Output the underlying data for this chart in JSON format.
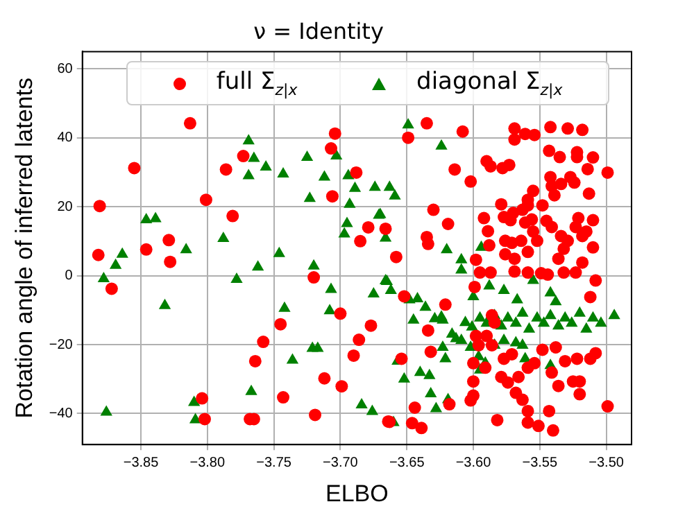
{
  "chart_data": {
    "type": "scatter",
    "title": "ν = Identity",
    "xlabel": "ELBO",
    "ylabel": "Rotation angle of inferred latents",
    "xlim": [
      -3.894,
      -3.481
    ],
    "ylim": [
      -49,
      65
    ],
    "xticks": [
      {
        "value": -3.85,
        "label": "−3.85"
      },
      {
        "value": -3.8,
        "label": "−3.80"
      },
      {
        "value": -3.75,
        "label": "−3.75"
      },
      {
        "value": -3.7,
        "label": "−3.70"
      },
      {
        "value": -3.65,
        "label": "−3.65"
      },
      {
        "value": -3.6,
        "label": "−3.60"
      },
      {
        "value": -3.55,
        "label": "−3.55"
      },
      {
        "value": -3.5,
        "label": "−3.50"
      }
    ],
    "yticks": [
      {
        "value": -40,
        "label": "−40"
      },
      {
        "value": -20,
        "label": "−20"
      },
      0,
      20,
      40,
      60
    ],
    "grid": true,
    "legend": "top",
    "series": [
      {
        "name": "full Σ$_{z|x}$",
        "color": "#ff0000",
        "marker": "circle",
        "x": [
          -3.813,
          -3.855,
          -3.881,
          -3.882,
          -3.872,
          -3.846,
          -3.829,
          -3.828,
          -3.801,
          -3.786,
          -3.773,
          -3.781,
          -3.704,
          -3.707,
          -3.706,
          -3.688,
          -3.679,
          -3.685,
          -3.666,
          -3.72,
          -3.7,
          -3.745,
          -3.677,
          -3.686,
          -3.758,
          -3.69,
          -3.764,
          -3.712,
          -3.699,
          -3.804,
          -3.743,
          -3.802,
          -3.768,
          -3.765,
          -3.719,
          -3.664,
          -3.635,
          -3.649,
          -3.608,
          -3.614,
          -3.602,
          -3.59,
          -3.587,
          -3.578,
          -3.573,
          -3.569,
          -3.569,
          -3.561,
          -3.554,
          -3.542,
          -3.543,
          -3.529,
          -3.518,
          -3.535,
          -3.522,
          -3.522,
          -3.51,
          -3.514,
          -3.499,
          -3.63,
          -3.619,
          -3.658,
          -3.635,
          -3.634,
          -3.652,
          -3.621,
          -3.634,
          -3.632,
          -3.654,
          -3.644,
          -3.646,
          -3.639,
          -3.663,
          -3.618,
          -3.602,
          -3.6,
          -3.579,
          -3.577,
          -3.572,
          -3.57,
          -3.563,
          -3.559,
          -3.561,
          -3.556,
          -3.555,
          -3.548,
          -3.545,
          -3.541,
          -3.534,
          -3.529,
          -3.532,
          -3.523,
          -3.518,
          -3.521,
          -3.51,
          -3.515,
          -3.51,
          -3.576,
          -3.571,
          -3.564,
          -3.552,
          -3.559,
          -3.576,
          -3.569,
          -3.598,
          -3.595,
          -3.589,
          -3.588,
          -3.592,
          -3.587,
          -3.569,
          -3.559,
          -3.549,
          -3.544,
          -3.536,
          -3.532,
          -3.523,
          -3.508,
          -3.518,
          -3.512,
          -3.599,
          -3.59,
          -3.586,
          -3.577,
          -3.571,
          -3.579,
          -3.574,
          -3.566,
          -3.559,
          -3.568,
          -3.563,
          -3.554,
          -3.548,
          -3.538,
          -3.531,
          -3.522,
          -3.52,
          -3.512,
          -3.508,
          -3.536,
          -3.525,
          -3.541,
          -3.559,
          -3.551,
          -3.54,
          -3.543,
          -3.559,
          -3.582,
          -3.499,
          -3.52,
          -3.586,
          -3.584,
          -3.596,
          -3.6,
          -3.6,
          -3.591,
          -3.598,
          -3.527,
          -3.524,
          -3.513,
          -3.541,
          -3.539,
          -3.534,
          -3.555,
          -3.559,
          -3.542
        ],
        "values": [
          44.2,
          31.2,
          20.2,
          6,
          -3.8,
          7.6,
          10.3,
          4,
          22,
          30.8,
          34.7,
          17.3,
          41.2,
          36.9,
          23,
          29.9,
          14,
          10,
          13.6,
          -0.5,
          -11,
          -14.1,
          -14.5,
          -18.6,
          -19.2,
          -23.2,
          -24.8,
          -29.8,
          -32.1,
          -35.6,
          -35.3,
          -41.6,
          -41.6,
          -41.6,
          -40.4,
          -42.3,
          44.2,
          40,
          41.8,
          30.8,
          27.3,
          33.2,
          31.7,
          31.2,
          32.1,
          42.7,
          39.5,
          41.1,
          40.8,
          43.1,
          36.2,
          42.7,
          42.3,
          34.4,
          35.8,
          34.4,
          34.3,
          30.9,
          29.9,
          19.1,
          15,
          5.4,
          11.2,
          9.2,
          -6,
          -8.4,
          -15.9,
          -22.1,
          -24.1,
          -38.3,
          -42.8,
          -44.2,
          -42.4,
          -37.3,
          -36.2,
          -34.8,
          20.7,
          17,
          16.1,
          18.2,
          19.1,
          20.4,
          15.4,
          16.3,
          12.8,
          20.4,
          15.9,
          14.1,
          11.5,
          10.1,
          7.8,
          14.1,
          11.5,
          16.7,
          16.1,
          12.8,
          8.2,
          10.1,
          9.5,
          10.1,
          10.1,
          6.9,
          6.2,
          4.9,
          4.6,
          0.9,
          12.9,
          8.8,
          16.7,
          0.9,
          1.2,
          0.9,
          0.7,
          0.3,
          4.9,
          0.9,
          0.9,
          -1.4,
          3.8,
          -6.2,
          -3.3,
          -17.5,
          -20.2,
          -24.1,
          -22.8,
          -29.4,
          -31,
          -29.4,
          -26.7,
          -34,
          -36,
          -25.4,
          -21.5,
          -20.8,
          -24.8,
          -24.1,
          -30.7,
          -24.1,
          -22.5,
          -32,
          -30.7,
          -28.1,
          -42.6,
          -43.6,
          -44.9,
          -39.3,
          -39.3,
          -41.9,
          -37.9,
          -34.4,
          -11.5,
          -13.6,
          -20.2,
          -25.4,
          -30.7,
          -26.7,
          -17.5,
          28.6,
          27,
          23.8,
          26,
          23.3,
          26.6,
          24.6,
          22,
          28.6
        ]
      },
      {
        "name": "diagonal Σ$_{z|x}$",
        "color": "#008000",
        "marker": "triangle",
        "x": [
          -3.769,
          -3.765,
          -3.769,
          -3.756,
          -3.743,
          -3.725,
          -3.723,
          -3.712,
          -3.703,
          -3.694,
          -3.689,
          -3.674,
          -3.693,
          -3.671,
          -3.695,
          -3.697,
          -3.666,
          -3.846,
          -3.839,
          -3.864,
          -3.869,
          -3.878,
          -3.832,
          -3.816,
          -3.788,
          -3.762,
          -3.778,
          -3.746,
          -3.72,
          -3.707,
          -3.708,
          -3.742,
          -3.675,
          -3.666,
          -3.721,
          -3.717,
          -3.736,
          -3.767,
          -3.81,
          -3.809,
          -3.876,
          -3.684,
          -3.676,
          -3.649,
          -3.624,
          -3.663,
          -3.659,
          -3.67,
          -3.62,
          -3.609,
          -3.609,
          -3.594,
          -3.665,
          -3.662,
          -3.648,
          -3.642,
          -3.636,
          -3.645,
          -3.629,
          -3.624,
          -3.623,
          -3.616,
          -3.613,
          -3.609,
          -3.606,
          -3.601,
          -3.6,
          -3.588,
          -3.577,
          -3.567,
          -3.555,
          -3.542,
          -3.538,
          -3.595,
          -3.59,
          -3.584,
          -3.579,
          -3.574,
          -3.568,
          -3.563,
          -3.558,
          -3.552,
          -3.547,
          -3.542,
          -3.536,
          -3.531,
          -3.526,
          -3.52,
          -3.515,
          -3.51,
          -3.504,
          -3.494,
          -3.621,
          -3.623,
          -3.596,
          -3.591,
          -3.595,
          -3.584,
          -3.577,
          -3.568,
          -3.561,
          -3.563,
          -3.542,
          -3.602,
          -3.657,
          -3.652,
          -3.64,
          -3.633,
          -3.632,
          -3.628,
          -3.619,
          -3.66
        ],
        "values": [
          39.1,
          34,
          29,
          31.5,
          29.5,
          34.3,
          22.4,
          28.6,
          34.7,
          29,
          25.3,
          25.6,
          20.7,
          17.5,
          15.1,
          12.1,
          10.9,
          16.2,
          16.5,
          6.2,
          3,
          -0.9,
          -8.7,
          7.5,
          10.8,
          2.5,
          -1.1,
          6.4,
          2.8,
          -4,
          -10.2,
          -9.5,
          -5.3,
          -1.5,
          -21.1,
          -21.1,
          -24.5,
          -33.6,
          -36.8,
          -41.8,
          -39.6,
          -37.5,
          -39.4,
          43.7,
          37.6,
          25.6,
          23.1,
          17.7,
          7.5,
          4.6,
          1.6,
          8.2,
          -1.7,
          -4.3,
          -7,
          -6.7,
          -9.2,
          -12.9,
          -12.5,
          -12,
          -12.9,
          -17,
          -18.3,
          -18.8,
          -13.6,
          -14.9,
          -6.1,
          -3,
          -4.3,
          -7,
          -1.4,
          -5,
          -7.6,
          -12.3,
          -13.8,
          -11.6,
          -14.6,
          -12.3,
          -13.8,
          -10.9,
          -15.5,
          -12.3,
          -13.8,
          -11.6,
          -14.6,
          -12.3,
          -13.8,
          -10.9,
          -15.5,
          -12.3,
          -13.8,
          -11.6,
          -24.1,
          -20.8,
          -23.5,
          -25.4,
          -27.4,
          -20.2,
          -18.8,
          -19.5,
          -24.1,
          -20.2,
          -26.1,
          -20.8,
          -24.8,
          -30,
          -28.1,
          -29,
          -34.3,
          -38.6,
          -36,
          -42.6
        ]
      }
    ]
  }
}
